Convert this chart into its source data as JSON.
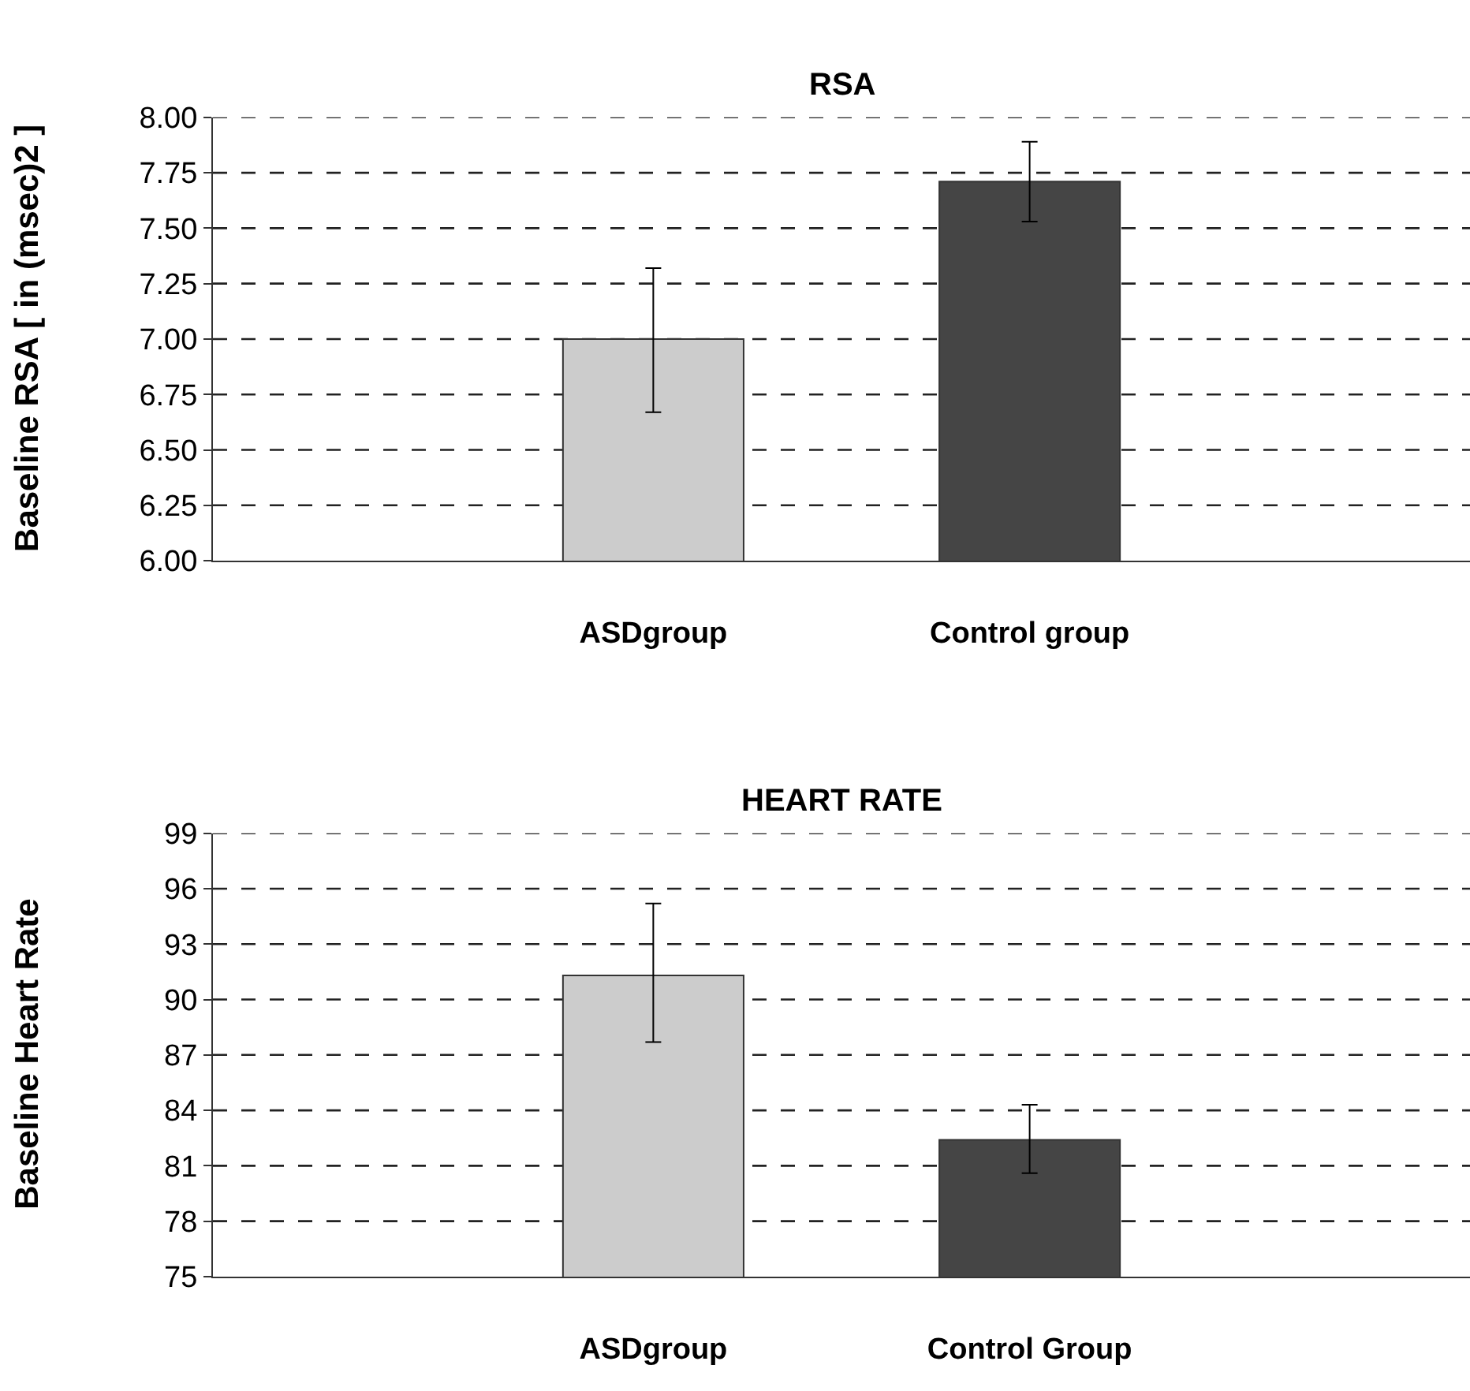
{
  "chart_data": [
    {
      "type": "bar",
      "title": "RSA",
      "ylabel": "Baseline RSA [ in (msec)2 ]",
      "categories": [
        "ASDgroup",
        "Control group"
      ],
      "values": [
        7.0,
        7.71
      ],
      "colors": [
        "#cccccc",
        "#454545"
      ],
      "errors": [
        [
          6.67,
          7.32
        ],
        [
          7.53,
          7.89
        ]
      ],
      "ylim": [
        6.0,
        8.0
      ],
      "yticks": [
        {
          "value": 6,
          "label": "6.00"
        },
        {
          "value": 6.25,
          "label": "6.25"
        },
        {
          "value": 6.5,
          "label": "6.50"
        },
        {
          "value": 6.75,
          "label": "6.75"
        },
        {
          "value": 7,
          "label": "7.00"
        },
        {
          "value": 7.25,
          "label": "7.25"
        },
        {
          "value": 7.5,
          "label": "7.50"
        },
        {
          "value": 7.75,
          "label": "7.75"
        },
        {
          "value": 8,
          "label": "8.00"
        }
      ],
      "grid": "y"
    },
    {
      "type": "bar",
      "title": "HEART RATE",
      "ylabel": "Baseline Heart Rate",
      "categories": [
        "ASDgroup",
        "Control Group"
      ],
      "values": [
        91.3,
        82.4
      ],
      "colors": [
        "#cccccc",
        "#454545"
      ],
      "errors": [
        [
          87.7,
          95.2
        ],
        [
          80.6,
          84.3
        ]
      ],
      "ylim": [
        75,
        99
      ],
      "yticks": [
        75,
        78,
        81,
        84,
        87,
        90,
        93,
        96,
        99
      ],
      "grid": "y"
    }
  ]
}
